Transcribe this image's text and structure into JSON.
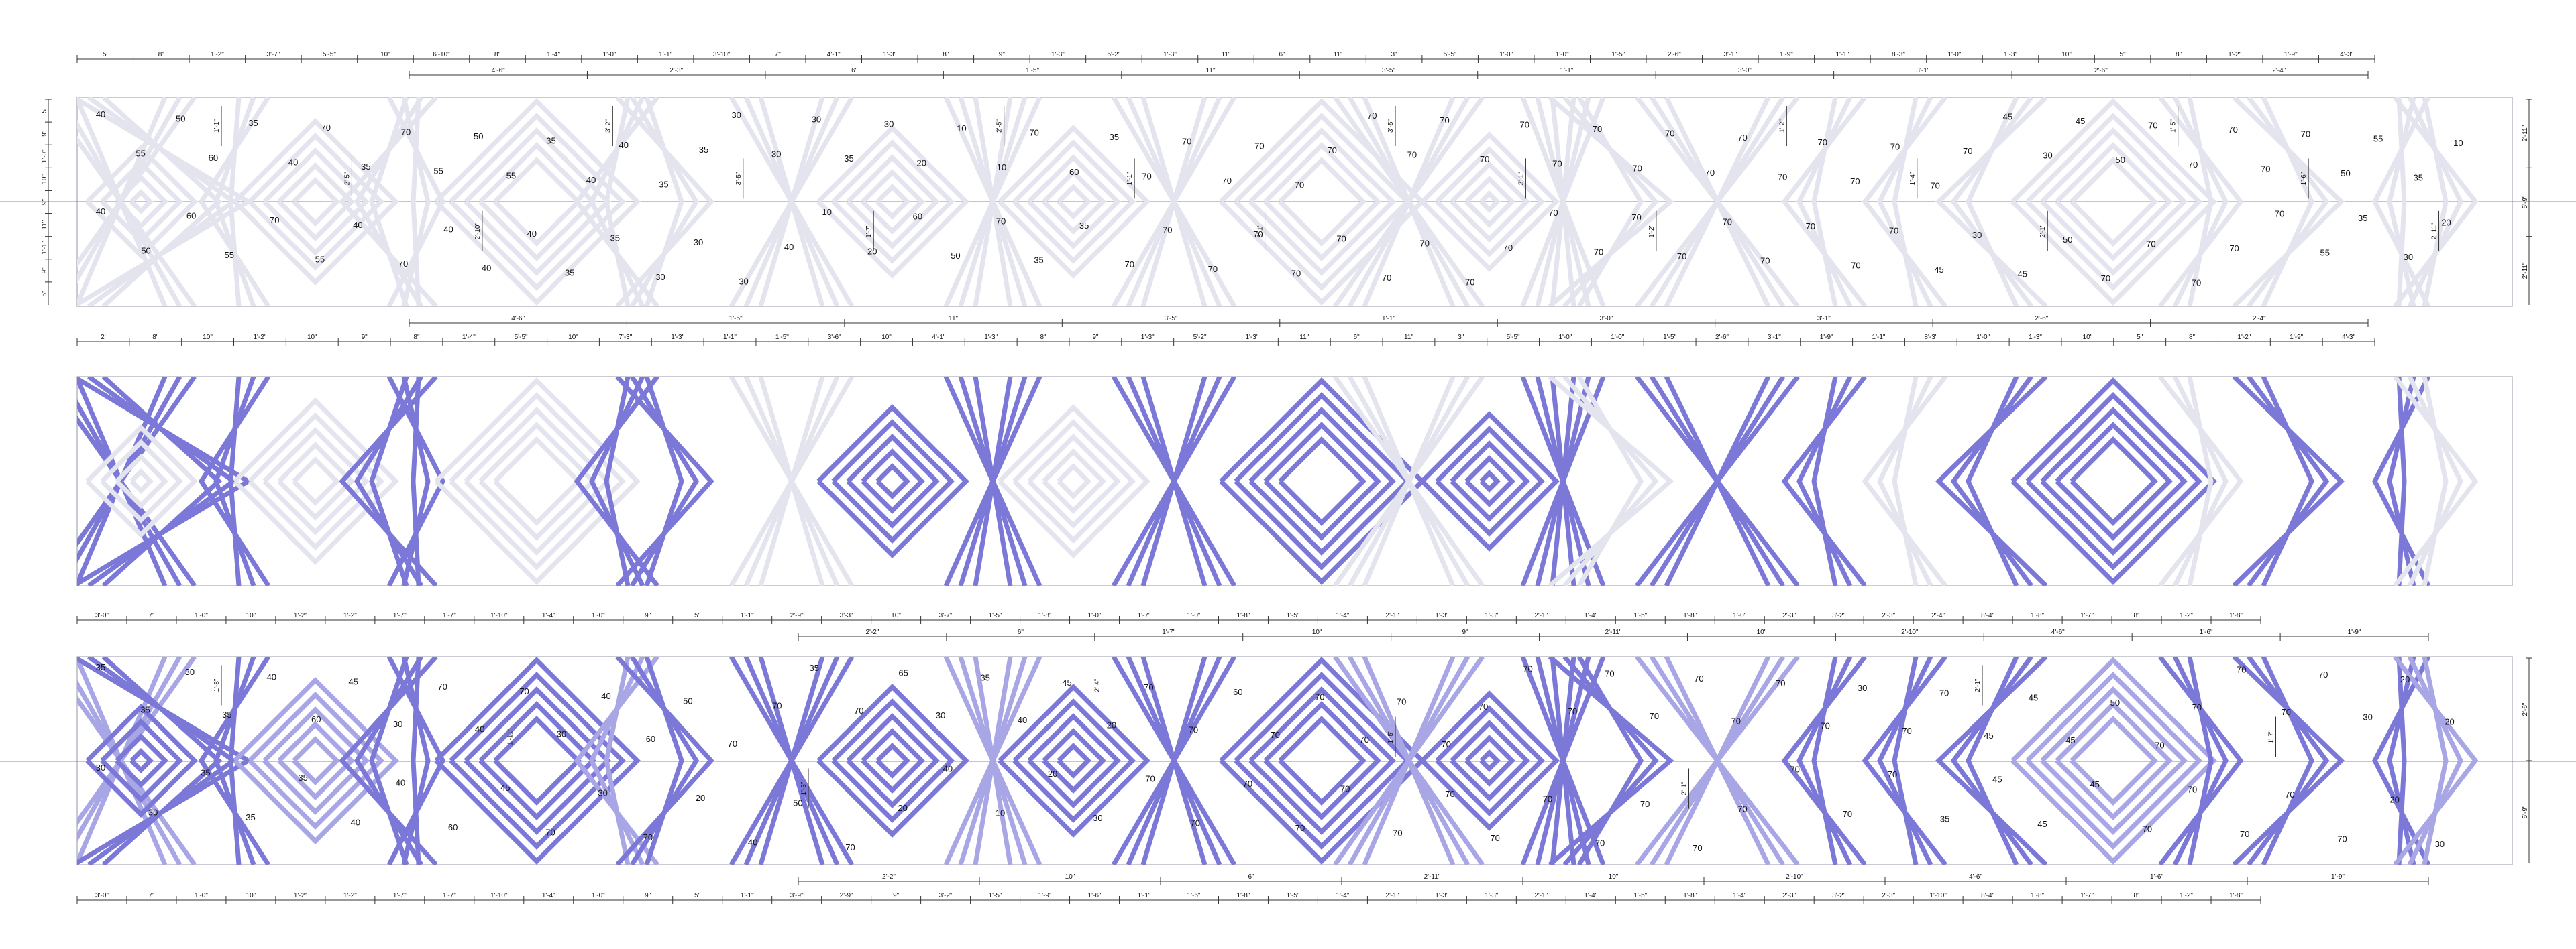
{
  "colors": {
    "stripe_grey": "#e4e4ee",
    "stripe_blue": "#7b78d8",
    "panel_border": "#b9b9c4",
    "dim_line": "#333333",
    "center_line": "#8a8a94",
    "text": "#111111"
  },
  "top_plan": {
    "dims_top": [
      "5'",
      "8\"",
      "1'-2\"",
      "3'-7\"",
      "5'-5\"",
      "10\"",
      "6'-10\"",
      "8\"",
      "1'-4\"",
      "1'-0\"",
      "1'-1\"",
      "3'-10\"",
      "7\"",
      "4'-1\"",
      "1'-3\"",
      "8\"",
      "9\"",
      "1'-3\"",
      "5'-2\"",
      "1'-3\"",
      "11\"",
      "6\"",
      "11\"",
      "3\"",
      "5'-5\"",
      "1'-0\"",
      "1'-0\"",
      "1'-5\"",
      "2'-6\"",
      "3'-1\"",
      "1'-9\"",
      "1'-1\"",
      "8'-3\"",
      "1'-0\"",
      "1'-3\"",
      "10\"",
      "5\"",
      "8\"",
      "1'-2\"",
      "1'-9\"",
      "4'-3\""
    ],
    "dims_top_inner": [
      "4'-6\"",
      "2'-3\"",
      "6\"",
      "1'-5\"",
      "11\"",
      "3'-5\"",
      "1'-1\"",
      "3'-0\"",
      "3'-1\"",
      "2'-6\"",
      "2'-4\""
    ],
    "dims_bottom": [
      "2'",
      "8\"",
      "10\"",
      "1'-2\"",
      "10\"",
      "9\"",
      "8\"",
      "1'-4\"",
      "5'-5\"",
      "10\"",
      "7'-3\"",
      "1'-3\"",
      "1'-1\"",
      "1'-5\"",
      "3'-6\"",
      "10\"",
      "4'-1\"",
      "1'-3\"",
      "8\"",
      "9\"",
      "1'-3\"",
      "5'-2\"",
      "1'-3\"",
      "11\"",
      "6\"",
      "11\"",
      "3\"",
      "5'-5\"",
      "1'-0\"",
      "1'-0\"",
      "1'-5\"",
      "2'-6\"",
      "3'-1\"",
      "1'-9\"",
      "1'-1\"",
      "8'-3\"",
      "1'-0\"",
      "1'-3\"",
      "10\"",
      "5\"",
      "8\"",
      "1'-2\"",
      "1'-9\"",
      "4'-3\""
    ],
    "dims_bottom_inner": [
      "4'-6\"",
      "1'-5\"",
      "11\"",
      "3'-5\"",
      "1'-1\"",
      "3'-0\"",
      "3'-1\"",
      "2'-6\"",
      "2'-4\""
    ],
    "dims_left": [
      "5'",
      "9\"",
      "1'-0\"",
      "10\"",
      "9\"",
      "11\"",
      "1'-1\"",
      "9\"",
      "5\""
    ],
    "dims_right": [
      "2'-11\"",
      "5'-9\"",
      "2'-11\""
    ],
    "dims_vertical_inner": [
      "1'-1\"",
      "2'-5\"",
      "2'-10\"",
      "3'-2\"",
      "3'-5\"",
      "1'-7\"",
      "2'-5\"",
      "1'-1\"",
      "3'-1\"",
      "3'-5\"",
      "2'-1\"",
      "1'-2\"",
      "1'-2\"",
      "1'-4\"",
      "2'-1\"",
      "1'-5\"",
      "1'-6\"",
      "2'-11\""
    ],
    "angles_upper": [
      "40",
      "55",
      "50",
      "60",
      "35",
      "40",
      "70",
      "35",
      "70",
      "55",
      "50",
      "55",
      "35",
      "40",
      "40",
      "35",
      "35",
      "30",
      "30",
      "30",
      "35",
      "30",
      "20",
      "10",
      "10",
      "70",
      "60",
      "35",
      "70",
      "70",
      "70",
      "70",
      "70",
      "70",
      "70",
      "70",
      "70",
      "70",
      "70",
      "70",
      "70",
      "70",
      "70",
      "70",
      "70",
      "70",
      "70",
      "70",
      "70",
      "70",
      "70",
      "45",
      "30",
      "45",
      "50",
      "70",
      "70",
      "70",
      "70",
      "70",
      "50",
      "55",
      "35",
      "10"
    ],
    "angles_lower": [
      "40",
      "50",
      "60",
      "55",
      "70",
      "55",
      "40",
      "70",
      "40",
      "40",
      "40",
      "35",
      "35",
      "30",
      "30",
      "30",
      "40",
      "10",
      "20",
      "60",
      "50",
      "70",
      "35",
      "35",
      "70",
      "70",
      "70",
      "70",
      "70",
      "70",
      "70",
      "70",
      "70",
      "70",
      "70",
      "70",
      "70",
      "70",
      "70",
      "70",
      "70",
      "70",
      "70",
      "45",
      "30",
      "45",
      "50",
      "70",
      "70",
      "70",
      "70",
      "70",
      "55",
      "35",
      "30",
      "20"
    ]
  },
  "bottom_plan": {
    "dims_top": [
      "3'-0\"",
      "7\"",
      "1'-0\"",
      "10\"",
      "1'-2\"",
      "1'-2\"",
      "1'-7\"",
      "1'-7\"",
      "1'-10\"",
      "1'-4\"",
      "1'-0\"",
      "9\"",
      "5\"",
      "1'-1\"",
      "2'-9\"",
      "3'-3\"",
      "10\"",
      "3'-7\"",
      "1'-5\"",
      "1'-8\"",
      "1'-0\"",
      "1'-7\"",
      "1'-0\"",
      "1'-8\"",
      "1'-5\"",
      "1'-4\"",
      "2'-1\"",
      "1'-3\"",
      "1'-3\"",
      "2'-1\"",
      "1'-4\"",
      "1'-5\"",
      "1'-8\"",
      "1'-0\"",
      "2'-3\"",
      "3'-2\"",
      "2'-3\"",
      "2'-4\"",
      "8'-4\"",
      "1'-8\"",
      "1'-7\"",
      "8\"",
      "1'-2\"",
      "1'-8\""
    ],
    "dims_top_inner": [
      "2'-2\"",
      "6\"",
      "1'-7\"",
      "10\"",
      "9\"",
      "2'-11\"",
      "10\"",
      "2'-10\"",
      "4'-6\"",
      "1'-6\"",
      "1'-9\""
    ],
    "dims_bottom": [
      "3'-0\"",
      "7\"",
      "1'-0\"",
      "10\"",
      "1'-2\"",
      "1'-2\"",
      "1'-7\"",
      "1'-7\"",
      "1'-10\"",
      "1'-4\"",
      "1'-0\"",
      "9\"",
      "5\"",
      "1'-1\"",
      "3'-9\"",
      "2'-9\"",
      "9\"",
      "3'-2\"",
      "1'-5\"",
      "1'-9\"",
      "1'-6\"",
      "1'-1\"",
      "1'-6\"",
      "1'-8\"",
      "1'-5\"",
      "1'-4\"",
      "2'-1\"",
      "1'-3\"",
      "1'-3\"",
      "2'-1\"",
      "1'-4\"",
      "1'-5\"",
      "1'-8\"",
      "1'-4\"",
      "2'-3\"",
      "3'-2\"",
      "2'-3\"",
      "1'-10\"",
      "8'-4\"",
      "1'-8\"",
      "1'-7\"",
      "8\"",
      "1'-2\"",
      "1'-8\""
    ],
    "dims_bottom_inner": [
      "2'-2\"",
      "10\"",
      "6\"",
      "2'-11\"",
      "10\"",
      "2'-10\"",
      "4'-6\"",
      "1'-6\"",
      "1'-9\""
    ],
    "dims_right": [
      "2'-6\"",
      "5'-9\""
    ],
    "dims_vertical_inner": [
      "1'-8\"",
      "1'-11\"",
      "1'-3\"",
      "2'-4\"",
      "1'-5\"",
      "2'-1\"",
      "2'-1\"",
      "1'-7\""
    ],
    "angles_upper": [
      "35",
      "35",
      "30",
      "35",
      "40",
      "60",
      "45",
      "30",
      "70",
      "40",
      "70",
      "30",
      "40",
      "60",
      "50",
      "70",
      "70",
      "35",
      "70",
      "65",
      "30",
      "35",
      "40",
      "45",
      "20",
      "70",
      "70",
      "60",
      "70",
      "70",
      "70",
      "70",
      "70",
      "70",
      "70",
      "70",
      "70",
      "70",
      "70",
      "70",
      "70",
      "70",
      "30",
      "70",
      "70",
      "45",
      "45",
      "45",
      "50",
      "70",
      "70",
      "70",
      "70",
      "70",
      "30",
      "20",
      "20"
    ],
    "angles_lower": [
      "30",
      "30",
      "35",
      "35",
      "35",
      "40",
      "40",
      "60",
      "45",
      "70",
      "30",
      "70",
      "20",
      "40",
      "50",
      "70",
      "20",
      "40",
      "10",
      "20",
      "30",
      "70",
      "70",
      "70",
      "70",
      "70",
      "70",
      "70",
      "70",
      "70",
      "70",
      "70",
      "70",
      "70",
      "70",
      "70",
      "70",
      "35",
      "45",
      "45",
      "45",
      "70",
      "70",
      "70",
      "70",
      "70",
      "20",
      "30"
    ]
  }
}
